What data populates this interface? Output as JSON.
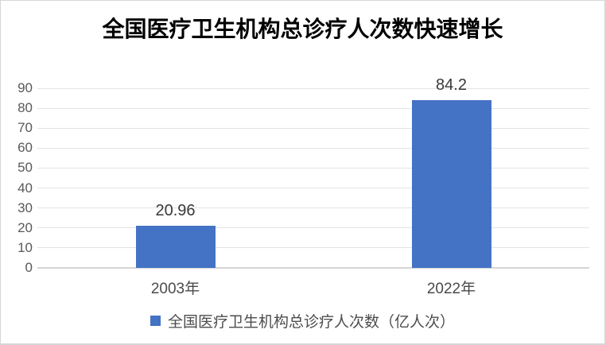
{
  "chart": {
    "title": "全国医疗卫生机构总诊疗人次数快速增长",
    "legend_label": "全国医疗卫生机构总诊疗人次数（亿人次）"
  },
  "chart_data": {
    "type": "bar",
    "title": "全国医疗卫生机构总诊疗人次数快速增长",
    "categories": [
      "2003年",
      "2022年"
    ],
    "series": [
      {
        "name": "全国医疗卫生机构总诊疗人次数（亿人次）",
        "values": [
          20.96,
          84.2
        ]
      }
    ],
    "data_labels": [
      "20.96",
      "84.2"
    ],
    "xlabel": "",
    "ylabel": "",
    "ylim": [
      0,
      90
    ],
    "yticks": [
      0,
      10,
      20,
      30,
      40,
      50,
      60,
      70,
      80,
      90
    ],
    "grid": true,
    "legend_position": "bottom",
    "colors": {
      "bar": "#4472c4",
      "gridline": "#e3e3e3",
      "axis_line": "#d5d5d5",
      "tick_label": "#595959",
      "category_label": "#4a4a4a",
      "data_label": "#383838",
      "title": "#000000",
      "frame_border": "#d6d6d6",
      "background": "#ffffff"
    }
  }
}
